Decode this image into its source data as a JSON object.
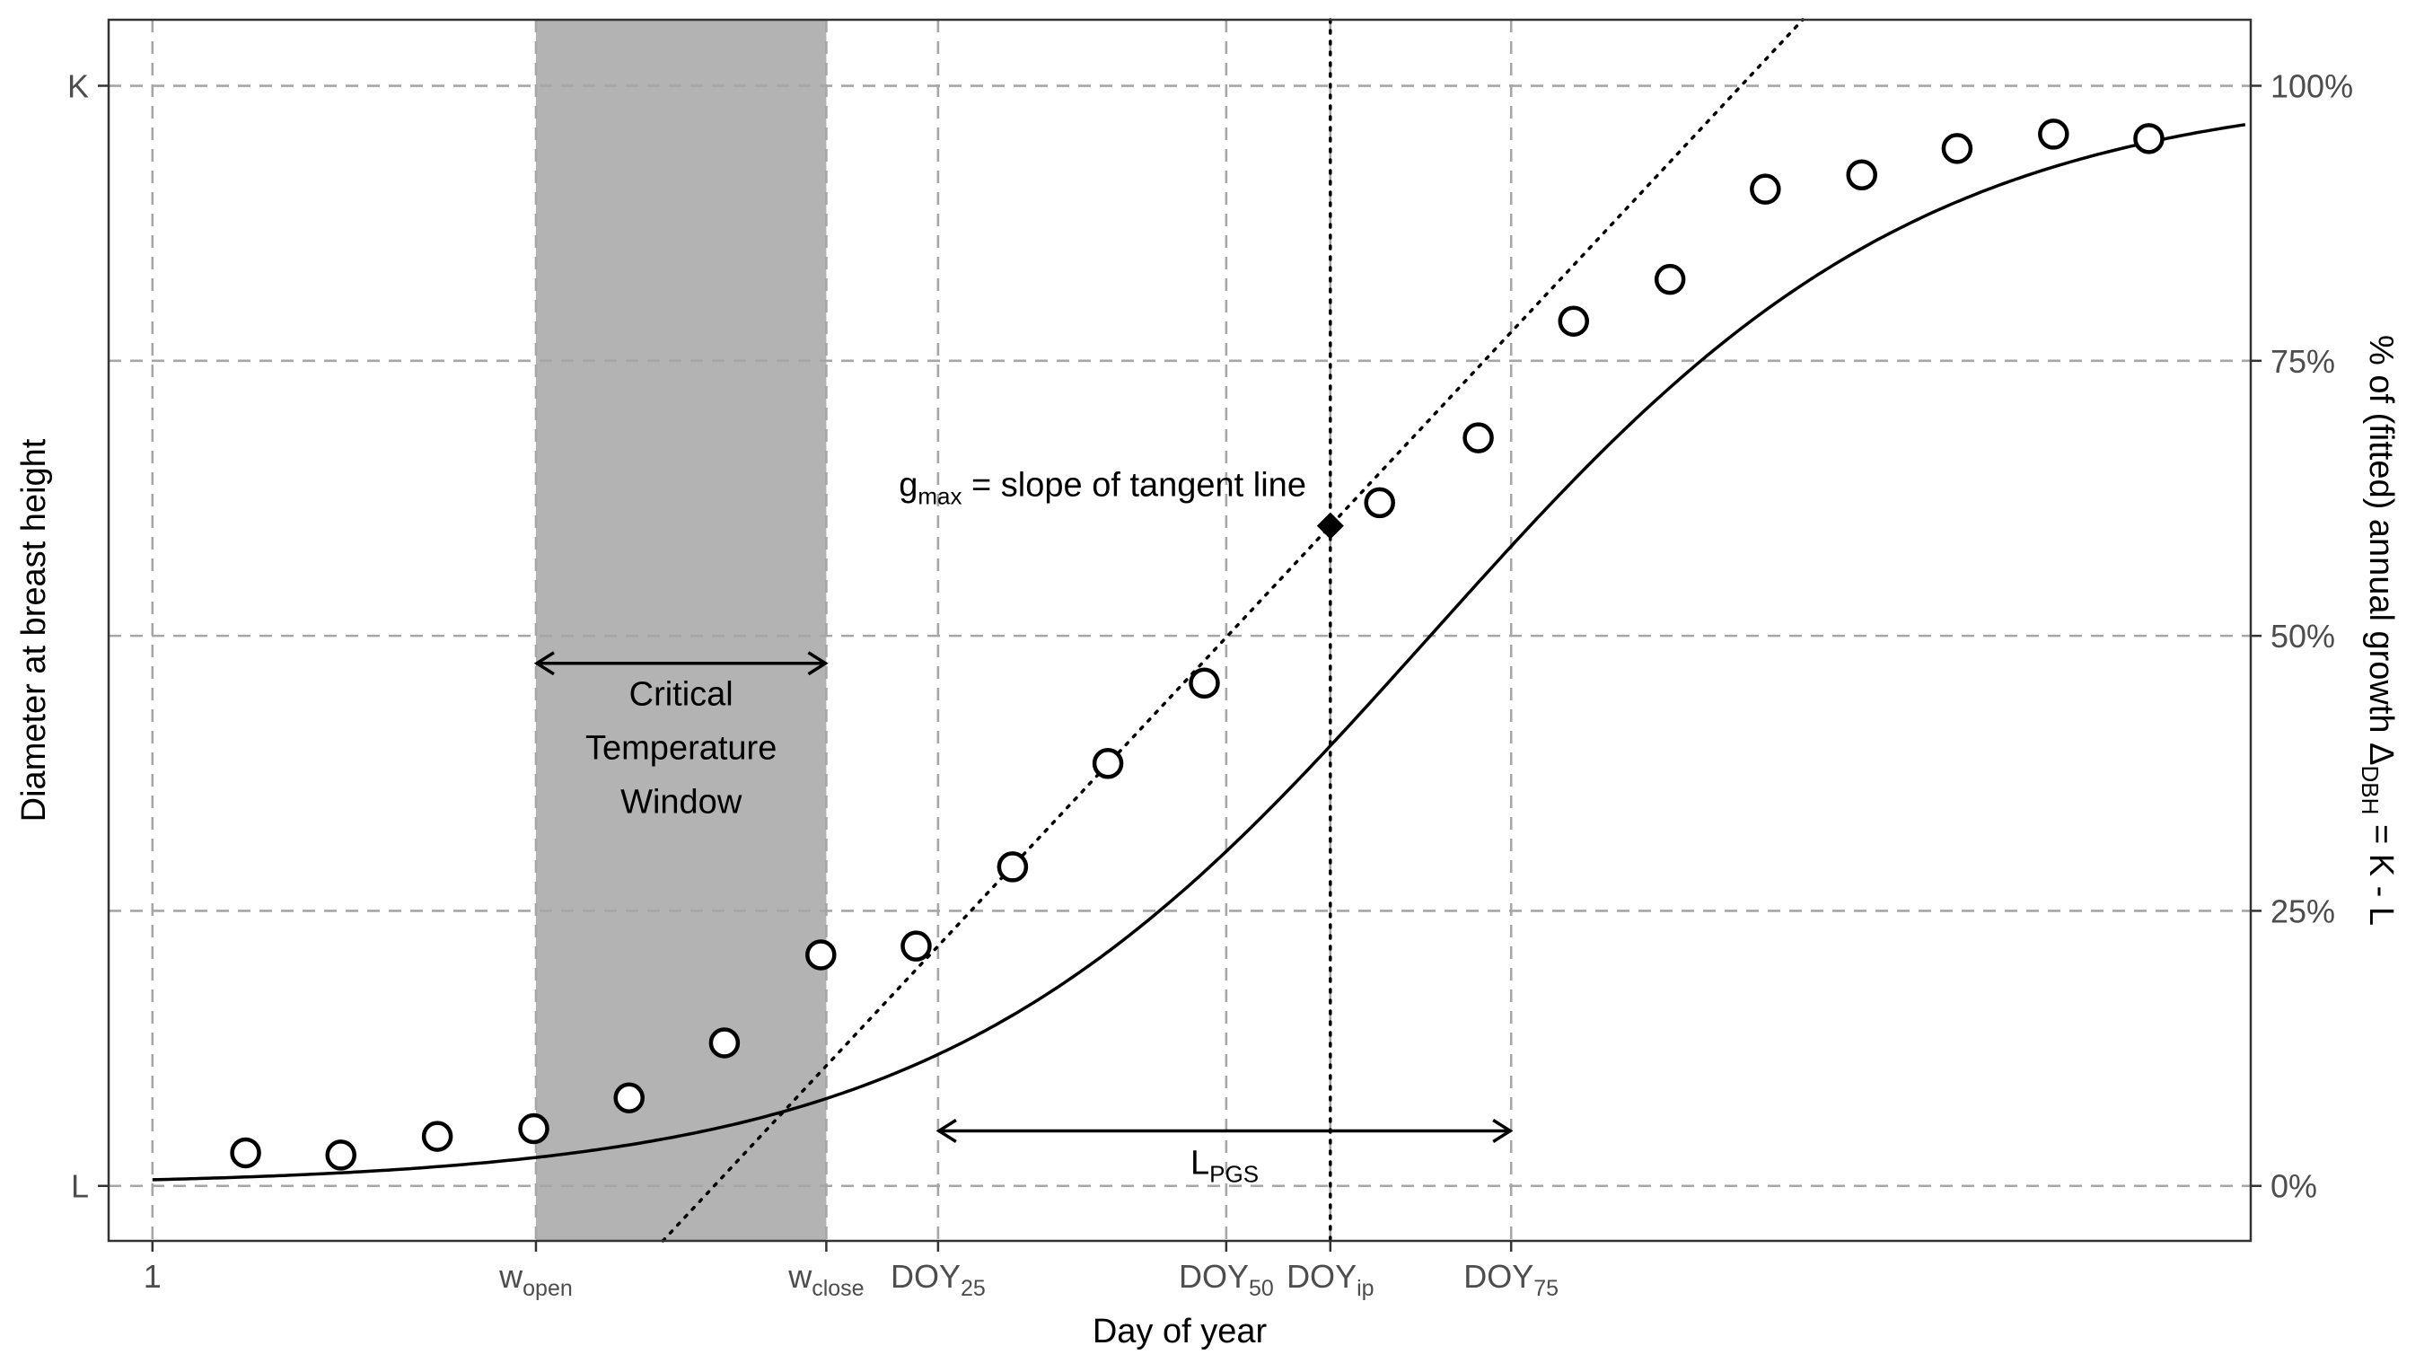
{
  "chart_data": {
    "type": "scatter",
    "xlabel": "Day of year",
    "ylabel": "Diameter at breast height",
    "ylabel_right": "% of (fitted) annual growth Δ",
    "ylabel_right_sub": "DBH",
    "ylabel_right_tail": " = K - L",
    "xlim": [
      0.6,
      20.15
    ],
    "ylim": [
      -0.05,
      1.06
    ],
    "grid": "dashed major lines at labeled ticks",
    "x_ticks": [
      {
        "x": 1,
        "label": "1",
        "sub": ""
      },
      {
        "x": 4.5,
        "label": "w",
        "sub": "open"
      },
      {
        "x": 7.15,
        "label": "w",
        "sub": "close"
      },
      {
        "x": 8.17,
        "label": "DOY",
        "sub": "25"
      },
      {
        "x": 10.8,
        "label": "DOY",
        "sub": "50"
      },
      {
        "x": 11.75,
        "label": "DOY",
        "sub": "ip"
      },
      {
        "x": 13.4,
        "label": "DOY",
        "sub": "75"
      }
    ],
    "y_ticks_left": [
      {
        "y": 0,
        "label": "L"
      },
      {
        "y": 1,
        "label": "K"
      }
    ],
    "y_ticks_right": [
      {
        "y": 0,
        "label": "0%"
      },
      {
        "y": 0.25,
        "label": "25%"
      },
      {
        "y": 0.5,
        "label": "50%"
      },
      {
        "y": 0.75,
        "label": "75%"
      },
      {
        "y": 1,
        "label": "100%"
      }
    ],
    "observations": {
      "x": [
        1.85,
        2.72,
        3.6,
        4.48,
        5.35,
        6.22,
        7.1,
        7.97,
        8.85,
        9.72,
        10.6,
        12.2,
        13.1,
        13.97,
        14.85,
        15.72,
        16.6,
        17.47,
        18.35,
        19.22
      ],
      "y": [
        0.03,
        0.028,
        0.045,
        0.052,
        0.08,
        0.13,
        0.21,
        0.218,
        0.29,
        0.384,
        0.457,
        0.621,
        0.68,
        0.786,
        0.824,
        0.906,
        0.919,
        0.943,
        0.956,
        0.952
      ]
    },
    "fitted_curve": {
      "model": "logistic",
      "inflection_x": 11.75,
      "inflection_y": 0.6,
      "curvature": 0.4447
    },
    "inflection_point": {
      "x": 11.75,
      "y": 0.6
    },
    "tangent_line": {
      "through_x": 11.75,
      "through_y": 0.6,
      "slope": 0.1067
    },
    "inflection_vline_x": 11.75,
    "critical_window": {
      "start": 4.5,
      "end": 7.15,
      "label": [
        "Critical",
        "Temperature",
        "Window"
      ]
    },
    "lpgs": {
      "start": 8.17,
      "end": 13.4,
      "y": 0.05,
      "label": "L",
      "sub": "PGS"
    },
    "slope_annotation": {
      "pre": "g",
      "sub": "max",
      "post": " = slope of tangent line"
    }
  },
  "colors": {
    "window_fill": "#b3b3b3",
    "grid": "#a6a6a6",
    "ink": "#000000",
    "tick_text": "#4d4d4d"
  }
}
